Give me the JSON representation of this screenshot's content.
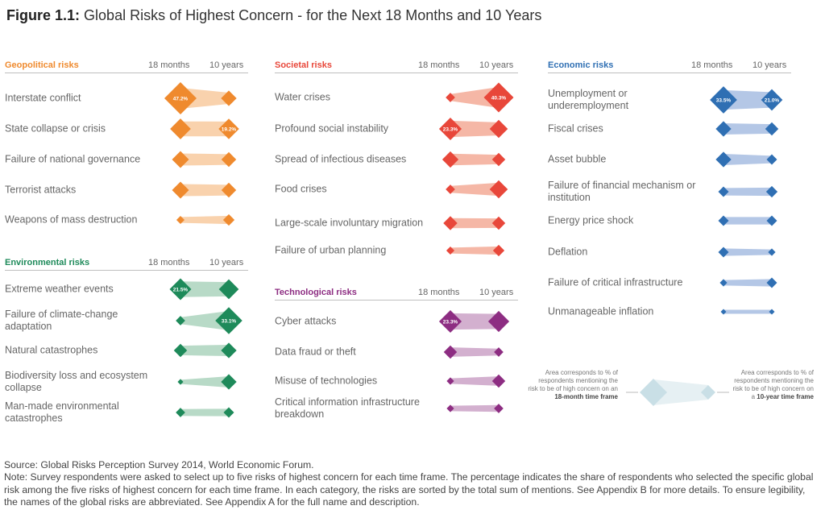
{
  "figure": {
    "label": "Figure 1.1:",
    "title": "Global Risks of Highest Concern - for the Next 18 Months and 10 Years"
  },
  "col_headers": {
    "short": "18 months",
    "long": "10 years"
  },
  "colors": {
    "geopolitical": "#ef8a2e",
    "geopolitical_band": "#f9d2ad",
    "societal": "#e8473a",
    "societal_band": "#f5b7a6",
    "environmental": "#1e8a5a",
    "environmental_band": "#b8dac7",
    "technological": "#8d2d82",
    "technological_band": "#d3b0cf",
    "economic": "#2f6fb3",
    "economic_band": "#b4c7e6",
    "legend": "#c9dfe6",
    "legend_band": "#e6f0f3"
  },
  "chart_data": [
    {
      "type": "table",
      "category": "Geopolitical risks",
      "color_key": "geopolitical",
      "labels": [
        "Interstate conflict",
        "State collapse or crisis",
        "Failure of national governance",
        "Terrorist attacks",
        "Weapons of mass destruction"
      ],
      "series": [
        {
          "name": "18 months",
          "values": [
            47.2,
            19.5,
            13,
            13,
            3
          ],
          "data_labels": [
            "47.2%",
            "",
            "",
            "",
            ""
          ]
        },
        {
          "name": "10 years",
          "values": [
            11,
            19.2,
            10,
            10,
            6
          ],
          "data_labels": [
            "",
            "19.2%",
            "",
            "",
            ""
          ]
        }
      ]
    },
    {
      "type": "table",
      "category": "Environmental risks",
      "color_key": "environmental",
      "labels": [
        "Extreme weather events",
        "Failure of climate-change adaptation",
        "Natural catastrophes",
        "Biodiversity loss and ecosystem collapse",
        "Man-made environmental catastrophes"
      ],
      "series": [
        {
          "name": "18 months",
          "values": [
            21.5,
            4,
            8,
            1.5,
            4
          ],
          "data_labels": [
            "21.5%",
            "",
            "",
            "",
            ""
          ]
        },
        {
          "name": "10 years",
          "values": [
            18,
            33.1,
            11,
            11,
            5
          ],
          "data_labels": [
            "",
            "33.1%",
            "",
            "",
            ""
          ]
        }
      ]
    },
    {
      "type": "table",
      "category": "Societal risks",
      "color_key": "societal",
      "labels": [
        "Water crises",
        "Profound social instability",
        "Spread of infectious diseases",
        "Food crises",
        "Large-scale involuntary migration",
        "Failure of urban planning"
      ],
      "series": [
        {
          "name": "18 months",
          "values": [
            4,
            23.3,
            12,
            4,
            9,
            3
          ],
          "data_labels": [
            "",
            "23.3%",
            "",
            "",
            "",
            ""
          ]
        },
        {
          "name": "10 years",
          "values": [
            40.3,
            15,
            8,
            15,
            8,
            6
          ],
          "data_labels": [
            "40.3%",
            "",
            "",
            "",
            "",
            ""
          ]
        }
      ]
    },
    {
      "type": "table",
      "category": "Technological risks",
      "color_key": "technological",
      "labels": [
        "Cyber attacks",
        "Data fraud or theft",
        "Misuse of technologies",
        "Critical information infrastructure breakdown"
      ],
      "series": [
        {
          "name": "18 months",
          "values": [
            23.3,
            8,
            2.5,
            2.5
          ],
          "data_labels": [
            "23.3%",
            "",
            "",
            ""
          ]
        },
        {
          "name": "10 years",
          "values": [
            20.2,
            4,
            8,
            4
          ],
          "data_labels": [
            "",
            "",
            "",
            ""
          ]
        }
      ]
    },
    {
      "type": "table",
      "category": "Economic risks",
      "color_key": "economic",
      "labels": [
        "Unemployment or underemployment",
        "Fiscal crises",
        "Asset bubble",
        "Failure of financial mechanism or institution",
        "Energy price shock",
        "Deflation",
        "Failure of critical infrastructure",
        "Unmanageable inflation"
      ],
      "series": [
        {
          "name": "18 months",
          "values": [
            33.5,
            11,
            11,
            5,
            5,
            5,
            2.5,
            1.2
          ],
          "data_labels": [
            "33.5%",
            "",
            "",
            "",
            "",
            "",
            "",
            ""
          ]
        },
        {
          "name": "10 years",
          "values": [
            21.0,
            8,
            5,
            6,
            5,
            2.5,
            5,
            1.2
          ],
          "data_labels": [
            "21.0%",
            "",
            "",
            "",
            "",
            "",
            "",
            ""
          ]
        }
      ]
    }
  ],
  "legend": {
    "left_text": "Area corresponds to % of respondents mentioning the risk to be of high concern",
    "left_bold_prefix": "on an ",
    "left_bold": "18-month time frame",
    "right_text": "Area corresponds to % of respondents mentioning the risk to be of high concern",
    "right_bold_prefix": "on a ",
    "right_bold": "10-year time frame"
  },
  "footer": {
    "source": "Source: Global Risks Perception Survey 2014, World Economic Forum.",
    "note": "Note: Survey respondents were asked to select up to five risks of highest concern for each time frame. The percentage indicates the share of respondents who selected the specific global risk among the five risks of highest concern for each time frame.  In each category, the risks are sorted by the total sum of mentions. See Appendix B for more details. To ensure legibility, the names of the global risks are abbreviated. See Appendix A for the full name and description."
  }
}
